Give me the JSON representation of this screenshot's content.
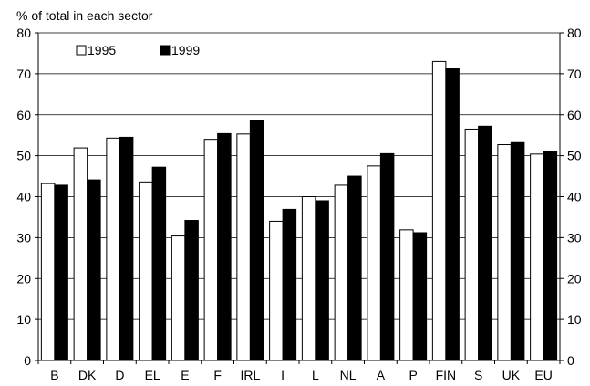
{
  "chart_data": {
    "type": "bar",
    "title": "",
    "ylabel": "% of total in each sector",
    "xlabel": "",
    "ylim": [
      0,
      80
    ],
    "yticks": [
      0,
      10,
      20,
      30,
      40,
      50,
      60,
      70,
      80
    ],
    "grid": true,
    "legend_position": "top-left",
    "categories": [
      "B",
      "DK",
      "D",
      "EL",
      "E",
      "F",
      "IRL",
      "I",
      "L",
      "NL",
      "A",
      "P",
      "FIN",
      "S",
      "UK",
      "EU"
    ],
    "series": [
      {
        "name": "1995",
        "color": "#ffffff",
        "values": [
          43.2,
          51.9,
          54.3,
          43.6,
          30.4,
          54.0,
          55.3,
          34.0,
          40.0,
          42.8,
          47.5,
          31.9,
          73.0,
          56.5,
          52.7,
          50.4
        ]
      },
      {
        "name": "1999",
        "color": "#000000",
        "values": [
          42.8,
          44.1,
          54.5,
          47.2,
          34.2,
          55.4,
          58.5,
          36.9,
          39.0,
          45.0,
          50.5,
          31.2,
          71.3,
          57.2,
          53.2,
          51.1
        ]
      }
    ]
  }
}
